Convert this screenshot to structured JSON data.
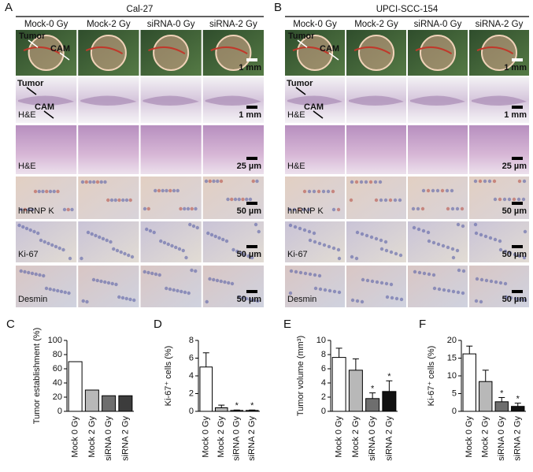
{
  "panel_a": {
    "letter": "A",
    "title": "Cal-27",
    "columns": [
      "Mock-0 Gy",
      "Mock-2 Gy",
      "siRNA-0 Gy",
      "siRNA-2 Gy"
    ],
    "rows": [
      {
        "annotations": [
          "Tumor",
          "CAM"
        ],
        "scale": "1 mm"
      },
      {
        "label": "H&E",
        "annotations": [
          "Tumor",
          "CAM"
        ],
        "scale": "1 mm"
      },
      {
        "label": "H&E",
        "scale": "25 µm"
      },
      {
        "label": "hnRNP K",
        "scale": "50 µm"
      },
      {
        "label": "Ki-67",
        "scale": "50 µm"
      },
      {
        "label": "Desmin",
        "scale": "50 µm"
      }
    ]
  },
  "panel_b": {
    "letter": "B",
    "title": "UPCI-SCC-154",
    "columns": [
      "Mock-0 Gy",
      "Mock-2 Gy",
      "siRNA-0 Gy",
      "siRNA-2 Gy"
    ],
    "rows": [
      {
        "annotations": [
          "Tumor",
          "CAM"
        ],
        "scale": "1 mm"
      },
      {
        "label": "H&E",
        "annotations": [
          "Tumor",
          "CAM"
        ],
        "scale": "1 mm"
      },
      {
        "label": "H&E",
        "scale": "25 µm"
      },
      {
        "label": "hnRNP K",
        "scale": "50 µm"
      },
      {
        "label": "Ki-67",
        "scale": "50 µm"
      },
      {
        "label": "Desmin",
        "scale": "50 µm"
      }
    ]
  },
  "chart_data": [
    {
      "type": "bar",
      "letter": "C",
      "ylabel": "Tumor establishment (%)",
      "categories": [
        "Mock 0 Gy",
        "Mock 2 Gy",
        "siRNA 0 Gy",
        "siRNA 2 Gy"
      ],
      "values": [
        70,
        30,
        22,
        22
      ],
      "colors": [
        "#ffffff",
        "#b8b8b8",
        "#6e6e6e",
        "#3c3c3c"
      ],
      "ylim": [
        0,
        100
      ],
      "yticks": [
        0,
        20,
        40,
        60,
        80,
        100
      ]
    },
    {
      "type": "bar",
      "letter": "D",
      "ylabel": "Ki-67⁺ cells (%)",
      "categories": [
        "Mock 0 Gy",
        "Mock 2 Gy",
        "siRNA 0 Gy",
        "siRNA 2 Gy"
      ],
      "values": [
        5.0,
        0.4,
        0.1,
        0.1
      ],
      "errors": [
        1.6,
        0.3,
        0.05,
        0.05
      ],
      "significance": [
        null,
        null,
        "*",
        "*"
      ],
      "colors": [
        "#ffffff",
        "#b8b8b8",
        "#6e6e6e",
        "#111111"
      ],
      "ylim": [
        0,
        8
      ],
      "yticks": [
        0,
        2,
        4,
        6,
        8
      ]
    },
    {
      "type": "bar",
      "letter": "E",
      "ylabel": "Tumor volume (mm³)",
      "categories": [
        "Mock 0 Gy",
        "Mock 2 Gy",
        "siRNA 0 Gy",
        "siRNA 2 Gy"
      ],
      "values": [
        7.6,
        5.8,
        1.8,
        2.8
      ],
      "errors": [
        1.3,
        1.6,
        0.8,
        1.5
      ],
      "significance": [
        null,
        null,
        "*",
        "*"
      ],
      "colors": [
        "#ffffff",
        "#b8b8b8",
        "#6e6e6e",
        "#111111"
      ],
      "ylim": [
        0,
        10
      ],
      "yticks": [
        0,
        2,
        4,
        6,
        8,
        10
      ]
    },
    {
      "type": "bar",
      "letter": "F",
      "ylabel": "Ki-67⁺ cells (%)",
      "categories": [
        "Mock 0 Gy",
        "Mock 2 Gy",
        "siRNA 0 Gy",
        "siRNA 2 Gy"
      ],
      "values": [
        16.2,
        8.4,
        2.7,
        1.4
      ],
      "errors": [
        2.2,
        3.2,
        1.2,
        0.9
      ],
      "significance": [
        null,
        null,
        "*",
        "*"
      ],
      "colors": [
        "#ffffff",
        "#b8b8b8",
        "#6e6e6e",
        "#111111"
      ],
      "ylim": [
        0,
        20
      ],
      "yticks": [
        0,
        5,
        10,
        15,
        20
      ]
    }
  ]
}
